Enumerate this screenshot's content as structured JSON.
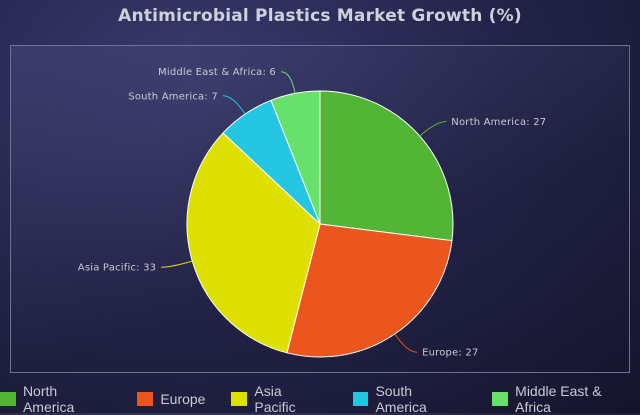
{
  "chart_data": {
    "type": "pie",
    "title": "Antimicrobial Plastics Market Growth (%)",
    "categories": [
      "North America",
      "Europe",
      "Asia Pacific",
      "South America",
      "Middle East & Africa"
    ],
    "values": [
      27,
      27,
      33,
      7,
      6
    ],
    "colors": [
      "#52b535",
      "#ea561d",
      "#dde000",
      "#24c6e2",
      "#67e06c"
    ],
    "start_angle_deg": 0,
    "direction": "clockwise",
    "legend_position": "bottom",
    "label_format": "{name}: {value}"
  }
}
